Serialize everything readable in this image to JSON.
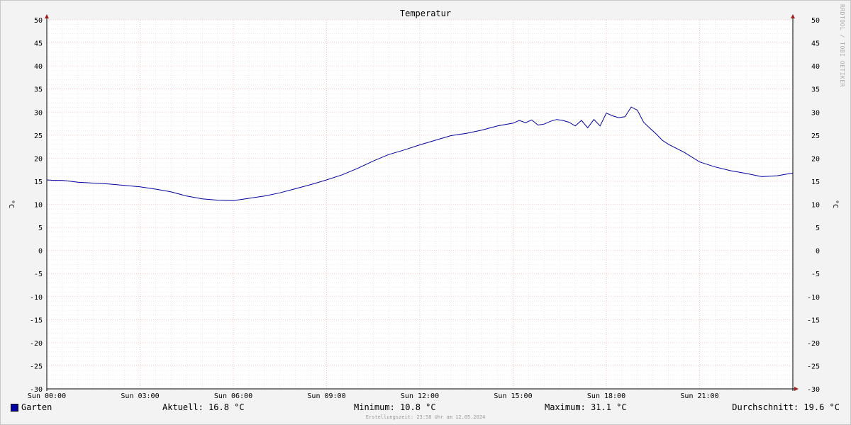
{
  "chart_data": {
    "type": "line",
    "title": "Temperatur",
    "ylabel": "°C",
    "ylabel_right": "°C",
    "ylim": [
      -30,
      50
    ],
    "yticks": [
      50,
      45,
      40,
      35,
      30,
      25,
      20,
      15,
      10,
      5,
      0,
      -5,
      -10,
      -15,
      -20,
      -25,
      -30
    ],
    "xlim_hours": [
      0,
      24
    ],
    "xtick_labels": [
      "Sun 00:00",
      "Sun 03:00",
      "Sun 06:00",
      "Sun 09:00",
      "Sun 12:00",
      "Sun 15:00",
      "Sun 18:00",
      "Sun 21:00"
    ],
    "grid": true,
    "legend_position": "bottom-left",
    "series": [
      {
        "name": "Garten",
        "color": "#0000a0",
        "x_hours": [
          0.0,
          0.25,
          0.5,
          0.75,
          1.0,
          1.5,
          2.0,
          2.5,
          3.0,
          3.5,
          4.0,
          4.5,
          5.0,
          5.5,
          6.0,
          6.5,
          7.0,
          7.5,
          8.0,
          8.5,
          9.0,
          9.5,
          10.0,
          10.5,
          11.0,
          11.5,
          12.0,
          12.5,
          13.0,
          13.5,
          14.0,
          14.5,
          14.75,
          15.0,
          15.2,
          15.4,
          15.6,
          15.8,
          16.0,
          16.2,
          16.4,
          16.6,
          16.8,
          17.0,
          17.2,
          17.4,
          17.6,
          17.8,
          18.0,
          18.2,
          18.4,
          18.6,
          18.8,
          19.0,
          19.2,
          19.4,
          19.6,
          19.8,
          20.0,
          20.5,
          21.0,
          21.5,
          22.0,
          22.5,
          23.0,
          23.5,
          24.0
        ],
        "values": [
          15.3,
          15.2,
          15.2,
          15.0,
          14.8,
          14.6,
          14.4,
          14.1,
          13.8,
          13.3,
          12.7,
          11.8,
          11.2,
          10.9,
          10.8,
          11.3,
          11.8,
          12.5,
          13.4,
          14.3,
          15.3,
          16.4,
          17.8,
          19.4,
          20.8,
          21.8,
          22.9,
          23.9,
          24.9,
          25.4,
          26.1,
          27.0,
          27.3,
          27.6,
          28.2,
          27.7,
          28.3,
          27.2,
          27.4,
          28.0,
          28.4,
          28.2,
          27.8,
          27.0,
          28.2,
          26.6,
          28.4,
          27.0,
          29.8,
          29.2,
          28.8,
          29.0,
          31.1,
          30.4,
          27.8,
          26.5,
          25.3,
          23.9,
          23.0,
          21.3,
          19.2,
          18.1,
          17.3,
          16.7,
          16.0,
          16.2,
          16.8
        ]
      }
    ],
    "stats": {
      "current": "Aktuell: 16.8 °C",
      "minimum": "Minimum: 10.8 °C",
      "maximum": "Maximum: 31.1 °C",
      "average": "Durchschnitt: 19.6 °C"
    },
    "footer": "Erstellungszeit: 23:58 Uhr am 12.05.2024",
    "watermark": "RRDTOOL / TOBI OETIKER"
  }
}
